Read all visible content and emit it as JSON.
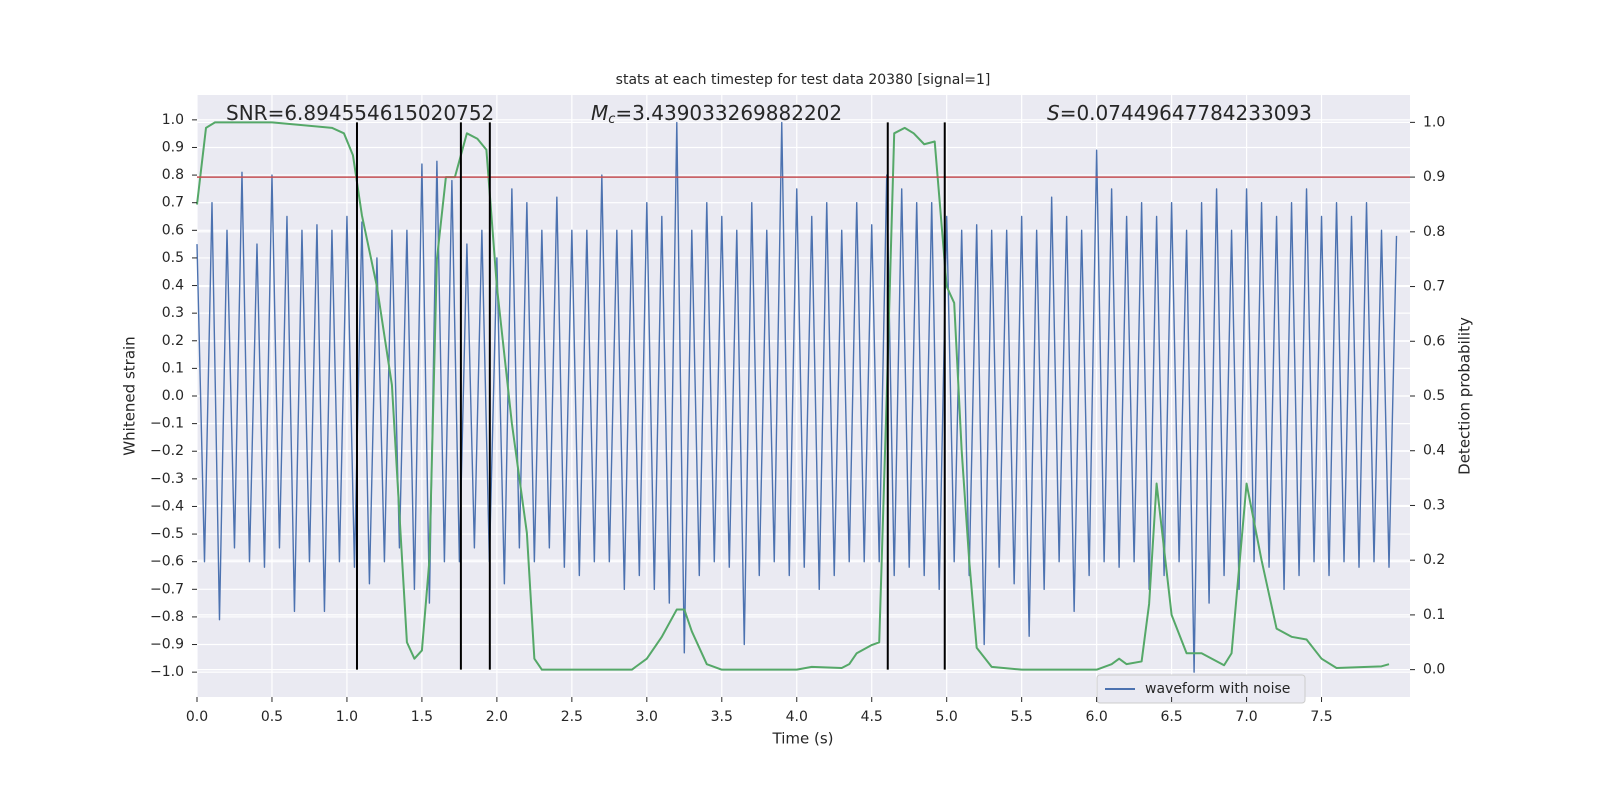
{
  "chart_data": {
    "type": "line",
    "title": "stats at each timestep for test data 20380 [signal=1]",
    "xlabel": "Time (s)",
    "ylabel": "Whitened strain",
    "y2label": "Detection probability",
    "annotations": [
      {
        "label": "SNR",
        "text": "=6.894554615020752"
      },
      {
        "label": "M",
        "subscript": "c",
        "text": "=3.439033269882202"
      },
      {
        "label": "S",
        "text": "=0.07449647784233093"
      }
    ],
    "xlim": [
      0,
      8.09
    ],
    "ylim": [
      -1.09,
      1.09
    ],
    "y2lim": [
      -0.05,
      1.05
    ],
    "xticks": [
      {
        "value": 0,
        "label": "0.0"
      },
      {
        "value": 0.5,
        "label": "0.5"
      },
      {
        "value": 1,
        "label": "1.0"
      },
      {
        "value": 1.5,
        "label": "1.5"
      },
      {
        "value": 2,
        "label": "2.0"
      },
      {
        "value": 2.5,
        "label": "2.5"
      },
      {
        "value": 3,
        "label": "3.0"
      },
      {
        "value": 3.5,
        "label": "3.5"
      },
      {
        "value": 4,
        "label": "4.0"
      },
      {
        "value": 4.5,
        "label": "4.5"
      },
      {
        "value": 5,
        "label": "5.0"
      },
      {
        "value": 5.5,
        "label": "5.5"
      },
      {
        "value": 6,
        "label": "6.0"
      },
      {
        "value": 6.5,
        "label": "6.5"
      },
      {
        "value": 7,
        "label": "7.0"
      },
      {
        "value": 7.5,
        "label": "7.5"
      }
    ],
    "yticks": [
      {
        "value": 1,
        "label": "1.0"
      },
      {
        "value": 0.9,
        "label": "0.9"
      },
      {
        "value": 0.8,
        "label": "0.8"
      },
      {
        "value": 0.7,
        "label": "0.7"
      },
      {
        "value": 0.6,
        "label": "0.6"
      },
      {
        "value": 0.5,
        "label": "0.5"
      },
      {
        "value": 0.4,
        "label": "0.4"
      },
      {
        "value": 0.3,
        "label": "0.3"
      },
      {
        "value": 0.2,
        "label": "0.2"
      },
      {
        "value": 0.1,
        "label": "0.1"
      },
      {
        "value": 0,
        "label": "0.0"
      },
      {
        "value": -0.1,
        "label": "−0.1"
      },
      {
        "value": -0.2,
        "label": "−0.2"
      },
      {
        "value": -0.3,
        "label": "−0.3"
      },
      {
        "value": -0.4,
        "label": "−0.4"
      },
      {
        "value": -0.5,
        "label": "−0.5"
      },
      {
        "value": -0.6,
        "label": "−0.6"
      },
      {
        "value": -0.7,
        "label": "−0.7"
      },
      {
        "value": -0.8,
        "label": "−0.8"
      },
      {
        "value": -0.9,
        "label": "−0.9"
      },
      {
        "value": -1,
        "label": "−1.0"
      }
    ],
    "y2ticks": [
      {
        "value": 0,
        "label": "0.0"
      },
      {
        "value": 0.1,
        "label": "0.1"
      },
      {
        "value": 0.2,
        "label": "0.2"
      },
      {
        "value": 0.3,
        "label": "0.3"
      },
      {
        "value": 0.4,
        "label": "0.4"
      },
      {
        "value": 0.5,
        "label": "0.5"
      },
      {
        "value": 0.6,
        "label": "0.6"
      },
      {
        "value": 0.7,
        "label": "0.7"
      },
      {
        "value": 0.8,
        "label": "0.8"
      },
      {
        "value": 0.9,
        "label": "0.9"
      },
      {
        "value": 1,
        "label": "1.0"
      }
    ],
    "grid": true,
    "legend": "lower right",
    "threshold": 0.9,
    "threshold_axis": "y2",
    "threshold_color": "#c44e52",
    "vlines": [
      1.067,
      1.76,
      1.953,
      4.607,
      4.987
    ],
    "vline_range": [
      0,
      1
    ],
    "vline_axis": "y2",
    "vline_color": "#000000",
    "series": [
      {
        "name": "waveform with noise",
        "color": "#4c72b0",
        "x": [
          0,
          0.05,
          0.1,
          0.15,
          0.2,
          0.25,
          0.3,
          0.35,
          0.4,
          0.45,
          0.5,
          0.55,
          0.6,
          0.65,
          0.7,
          0.75,
          0.8,
          0.85,
          0.9,
          0.95,
          1,
          1.05,
          1.1,
          1.15,
          1.2,
          1.25,
          1.3,
          1.35,
          1.4,
          1.45,
          1.5,
          1.55,
          1.6,
          1.65,
          1.7,
          1.75,
          1.8,
          1.85,
          1.9,
          1.95,
          2,
          2.05,
          2.1,
          2.15,
          2.2,
          2.25,
          2.3,
          2.35,
          2.4,
          2.45,
          2.5,
          2.55,
          2.6,
          2.65,
          2.7,
          2.75,
          2.8,
          2.85,
          2.9,
          2.95,
          3,
          3.05,
          3.1,
          3.15,
          3.2,
          3.25,
          3.3,
          3.35,
          3.4,
          3.45,
          3.5,
          3.55,
          3.6,
          3.65,
          3.7,
          3.75,
          3.8,
          3.85,
          3.9,
          3.95,
          4,
          4.05,
          4.1,
          4.15,
          4.2,
          4.25,
          4.3,
          4.35,
          4.4,
          4.45,
          4.5,
          4.55,
          4.6,
          4.65,
          4.7,
          4.75,
          4.8,
          4.85,
          4.9,
          4.95,
          5,
          5.05,
          5.1,
          5.15,
          5.2,
          5.25,
          5.3,
          5.35,
          5.4,
          5.45,
          5.5,
          5.55,
          5.6,
          5.65,
          5.7,
          5.75,
          5.8,
          5.85,
          5.9,
          5.95,
          6,
          6.05,
          6.1,
          6.15,
          6.2,
          6.25,
          6.3,
          6.35,
          6.4,
          6.45,
          6.5,
          6.55,
          6.6,
          6.65,
          6.7,
          6.75,
          6.8,
          6.85,
          6.9,
          6.95,
          7,
          7.05,
          7.1,
          7.15,
          7.2,
          7.25,
          7.3,
          7.35,
          7.4,
          7.45,
          7.5,
          7.55,
          7.6,
          7.65,
          7.7,
          7.75,
          7.8,
          7.85,
          7.9,
          7.95,
          8
        ],
        "values": [
          0.55,
          -0.6,
          0.7,
          -0.81,
          0.6,
          -0.55,
          0.81,
          -0.6,
          0.55,
          -0.62,
          0.8,
          -0.55,
          0.65,
          -0.78,
          0.6,
          -0.6,
          0.62,
          -0.78,
          0.6,
          -0.6,
          0.65,
          -0.62,
          0.63,
          -0.68,
          0.5,
          -0.6,
          0.6,
          -0.55,
          0.6,
          -0.7,
          0.84,
          -0.75,
          0.85,
          -0.6,
          0.78,
          -0.6,
          0.55,
          -0.55,
          0.6,
          -0.6,
          0.5,
          -0.68,
          0.75,
          -0.55,
          0.7,
          -0.6,
          0.6,
          -0.55,
          0.72,
          -0.62,
          0.6,
          -0.65,
          0.6,
          -0.6,
          0.8,
          -0.6,
          0.6,
          -0.7,
          0.6,
          -0.65,
          0.7,
          -0.7,
          0.65,
          -0.75,
          0.99,
          -0.93,
          0.6,
          -0.65,
          0.7,
          -0.6,
          0.65,
          -0.62,
          0.6,
          -0.9,
          0.7,
          -0.65,
          0.6,
          -0.6,
          0.99,
          -0.65,
          0.75,
          -0.62,
          0.65,
          -0.7,
          0.7,
          -0.65,
          0.6,
          -0.6,
          0.7,
          -0.6,
          0.62,
          -0.6,
          0.8,
          -0.65,
          0.75,
          -0.62,
          0.7,
          -0.65,
          0.7,
          -0.7,
          0.65,
          -0.6,
          0.6,
          -0.65,
          0.62,
          -0.9,
          0.6,
          -0.62,
          0.6,
          -0.68,
          0.65,
          -0.87,
          0.6,
          -0.7,
          0.72,
          -0.6,
          0.65,
          -0.78,
          0.6,
          -0.65,
          0.89,
          -0.6,
          0.75,
          -0.62,
          0.65,
          -0.6,
          0.7,
          -0.7,
          0.65,
          -0.65,
          0.7,
          -0.6,
          0.6,
          -1.0,
          0.7,
          -0.75,
          0.75,
          -0.65,
          0.6,
          -0.7,
          0.75,
          -0.6,
          0.7,
          -0.62,
          0.65,
          -0.7,
          0.7,
          -0.65,
          0.75,
          -0.6,
          0.65,
          -0.65,
          0.7,
          -0.6,
          0.65,
          -0.62,
          0.7,
          -0.6,
          0.6,
          -0.62,
          0.58
        ]
      },
      {
        "color": "#55a868",
        "axis": "y2",
        "x": [
          0,
          0.06,
          0.12,
          0.5,
          0.9,
          0.98,
          1.04,
          1.1,
          1.2,
          1.3,
          1.4,
          1.45,
          1.5,
          1.55,
          1.6,
          1.66,
          1.72,
          1.8,
          1.87,
          1.93,
          2.0,
          2.1,
          2.15,
          2.2,
          2.25,
          2.3,
          2.5,
          2.7,
          2.9,
          3.0,
          3.1,
          3.2,
          3.25,
          3.3,
          3.4,
          3.5,
          4.0,
          4.1,
          4.3,
          4.35,
          4.4,
          4.5,
          4.55,
          4.6,
          4.65,
          4.72,
          4.78,
          4.85,
          4.92,
          5.0,
          5.05,
          5.1,
          5.15,
          5.2,
          5.3,
          5.5,
          6.0,
          6.1,
          6.15,
          6.2,
          6.3,
          6.35,
          6.4,
          6.5,
          6.6,
          6.7,
          6.85,
          6.9,
          7.0,
          7.1,
          7.2,
          7.3,
          7.4,
          7.5,
          7.6,
          7.9,
          7.95
        ],
        "values": [
          0.85,
          0.99,
          1.0,
          1.0,
          0.99,
          0.98,
          0.94,
          0.83,
          0.7,
          0.52,
          0.05,
          0.02,
          0.035,
          0.2,
          0.75,
          0.9,
          0.9,
          0.98,
          0.97,
          0.95,
          0.7,
          0.45,
          0.35,
          0.25,
          0.02,
          0.0,
          0.0,
          0.0,
          0.0,
          0.02,
          0.06,
          0.11,
          0.11,
          0.07,
          0.01,
          0.0,
          0.0,
          0.005,
          0.003,
          0.01,
          0.03,
          0.045,
          0.05,
          0.5,
          0.98,
          0.99,
          0.98,
          0.96,
          0.965,
          0.7,
          0.67,
          0.4,
          0.2,
          0.04,
          0.005,
          0.0,
          0.0,
          0.01,
          0.02,
          0.01,
          0.015,
          0.12,
          0.34,
          0.1,
          0.03,
          0.03,
          0.008,
          0.03,
          0.34,
          0.2,
          0.075,
          0.06,
          0.055,
          0.02,
          0.003,
          0.006,
          0.01
        ]
      }
    ]
  }
}
